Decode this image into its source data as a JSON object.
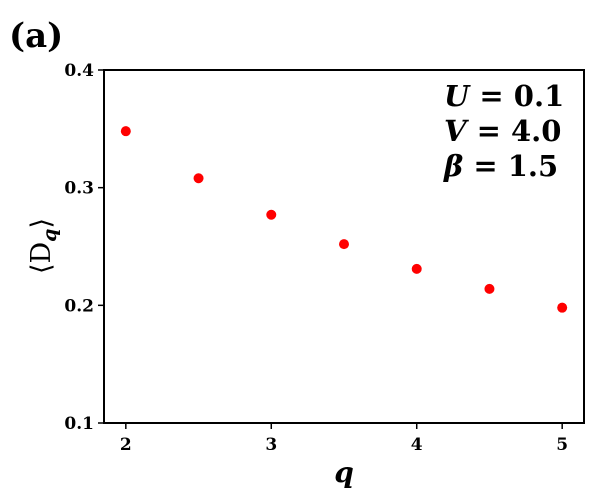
{
  "panel_label": "(a)",
  "annotations": [
    {
      "symbol": "U",
      "text": " = 0.1"
    },
    {
      "symbol": "V",
      "text": " = 4.0"
    },
    {
      "symbol": "β",
      "text": " = 1.5"
    }
  ],
  "chart_data": {
    "type": "scatter",
    "xlabel": "q",
    "ylabel": "⟨D_q⟩",
    "ylabel_parts": {
      "open": "⟨",
      "main": "D",
      "sub": "q",
      "close": "⟩"
    },
    "xlim": [
      1.85,
      5.15
    ],
    "ylim": [
      0.1,
      0.4
    ],
    "x_ticks": [
      2,
      3,
      4,
      5
    ],
    "x_tick_labels": [
      "2",
      "3",
      "4",
      "5"
    ],
    "y_ticks": [
      0.1,
      0.2,
      0.3,
      0.4
    ],
    "y_tick_labels": [
      "0.1",
      "0.2",
      "0.3",
      "0.4"
    ],
    "grid": false,
    "marker_color": "#ff0000",
    "x": [
      2.0,
      2.5,
      3.0,
      3.5,
      4.0,
      4.5,
      5.0
    ],
    "y": [
      0.348,
      0.308,
      0.277,
      0.252,
      0.231,
      0.214,
      0.198
    ]
  }
}
